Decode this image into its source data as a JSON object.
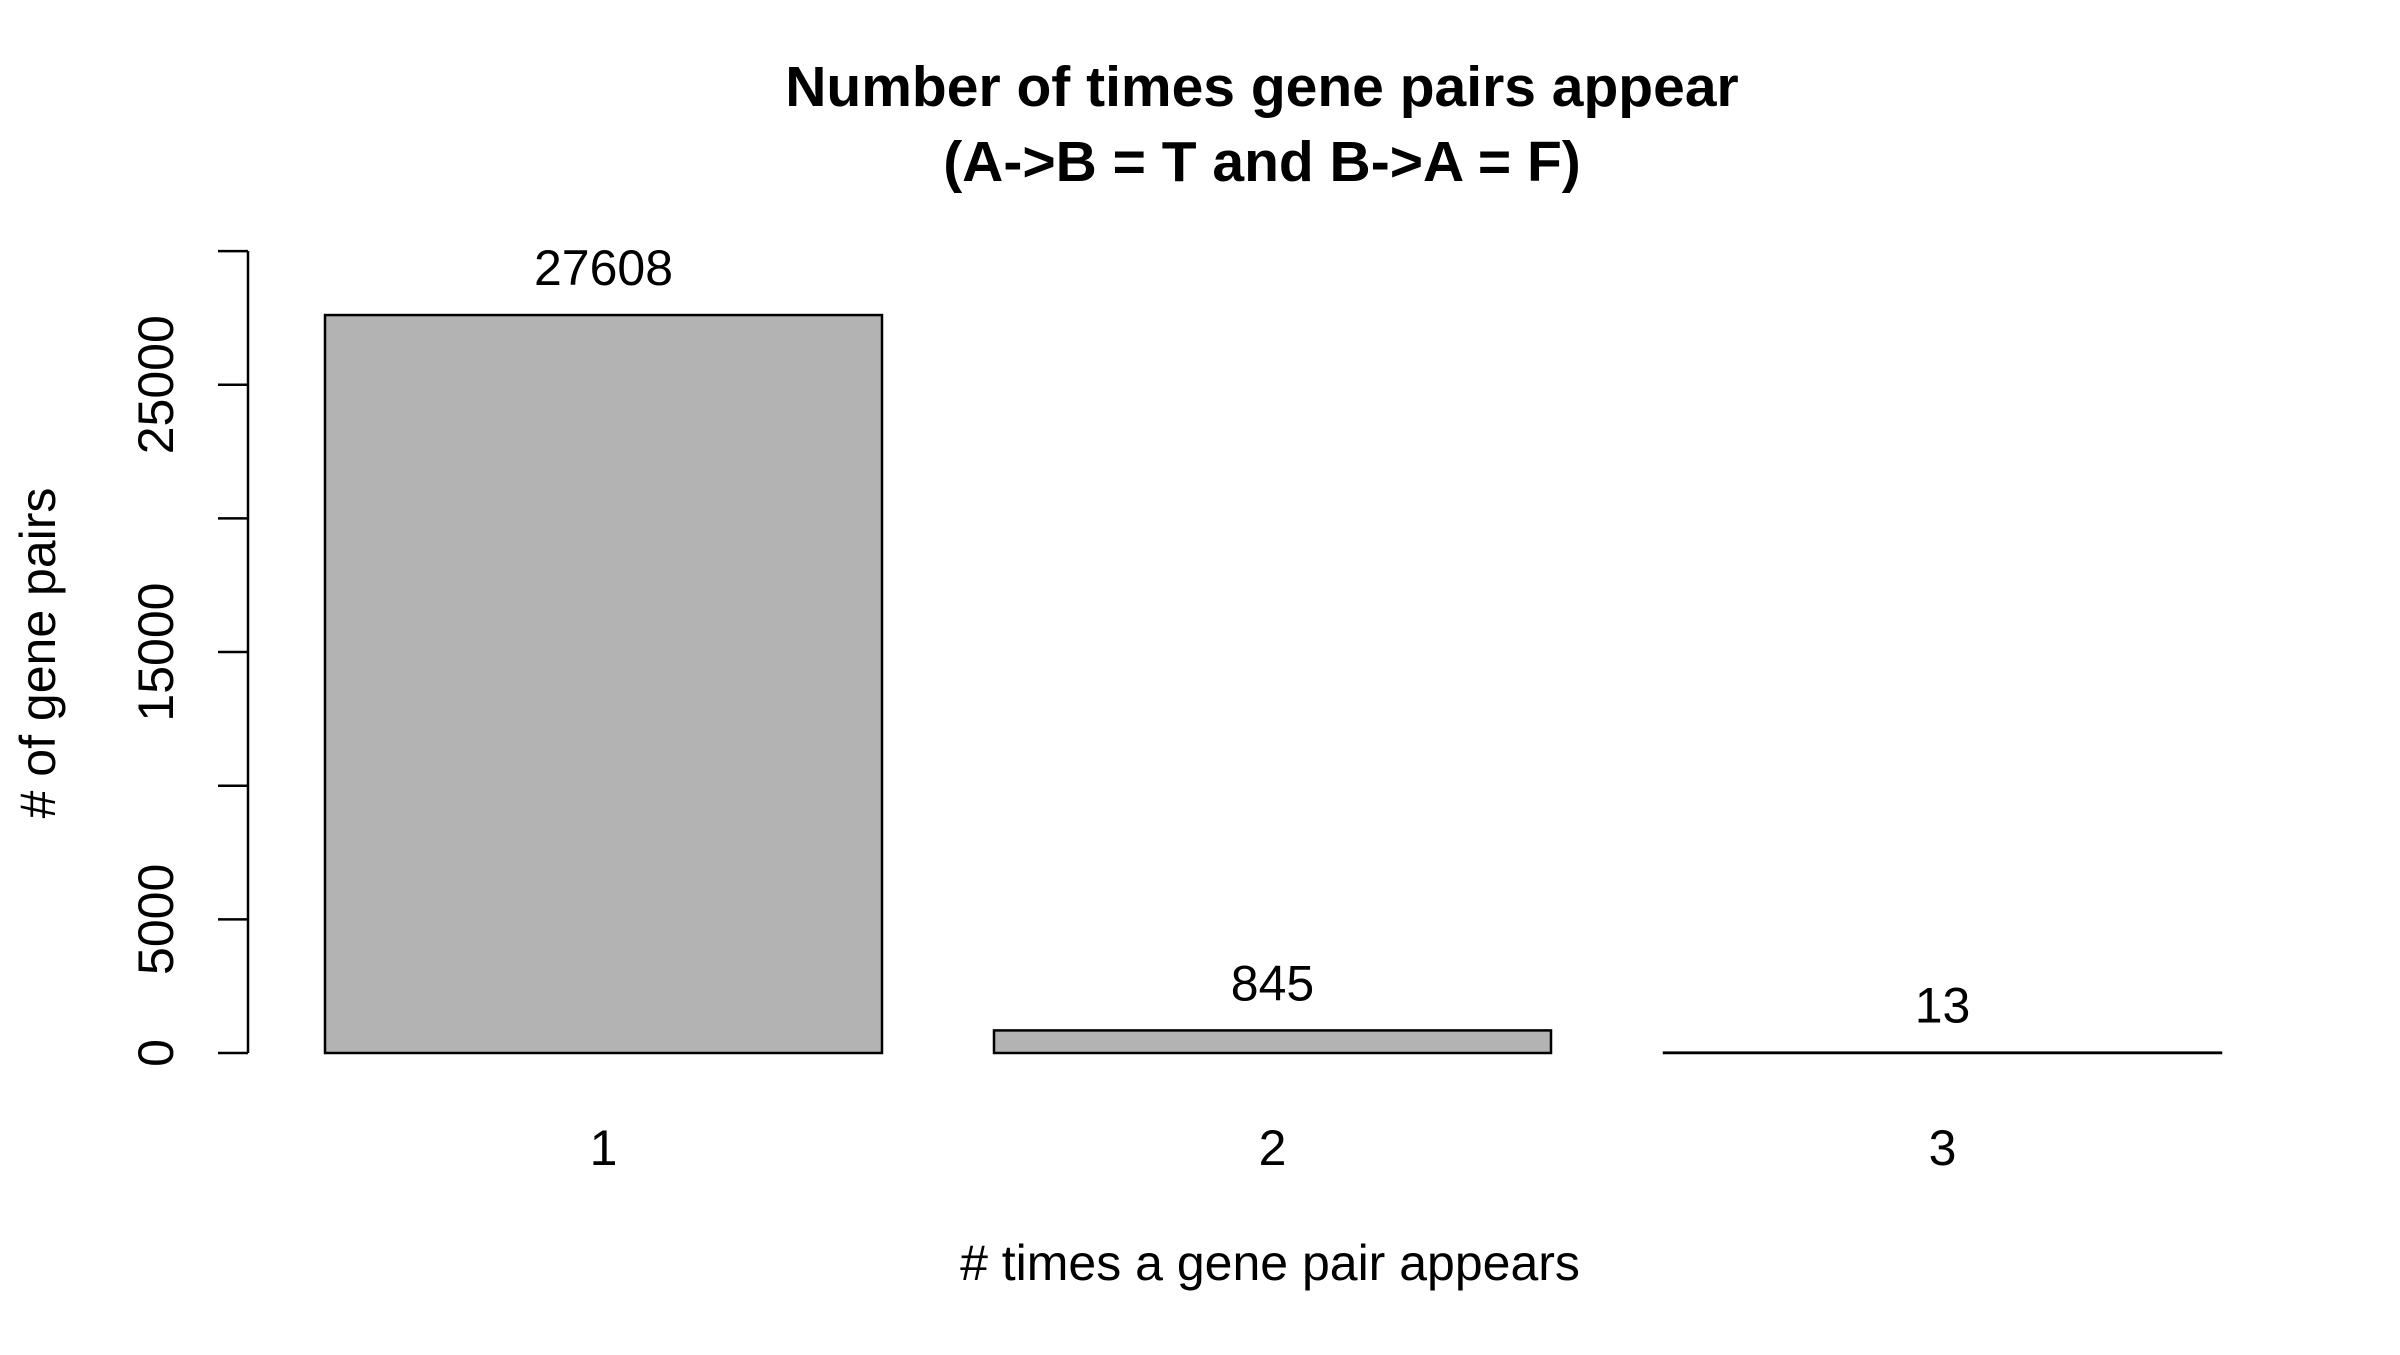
{
  "chart_data": {
    "type": "bar",
    "title": [
      "Number of times gene pairs appear",
      "(A->B = T and B->A = F)"
    ],
    "xlabel": "# times a gene pair appears",
    "ylabel": "# of gene pairs",
    "categories": [
      "1",
      "2",
      "3"
    ],
    "values": [
      27608,
      845,
      13
    ],
    "data_labels": [
      "27608",
      "845",
      "13"
    ],
    "ylim": [
      0,
      30000
    ],
    "yticks": [
      0,
      5000,
      10000,
      15000,
      20000,
      25000,
      30000
    ],
    "ytick_labels": [
      "0",
      "5000",
      "",
      "15000",
      "",
      "25000",
      ""
    ],
    "bar_color": "#b3b3b3",
    "grid": false,
    "legend": "none"
  }
}
